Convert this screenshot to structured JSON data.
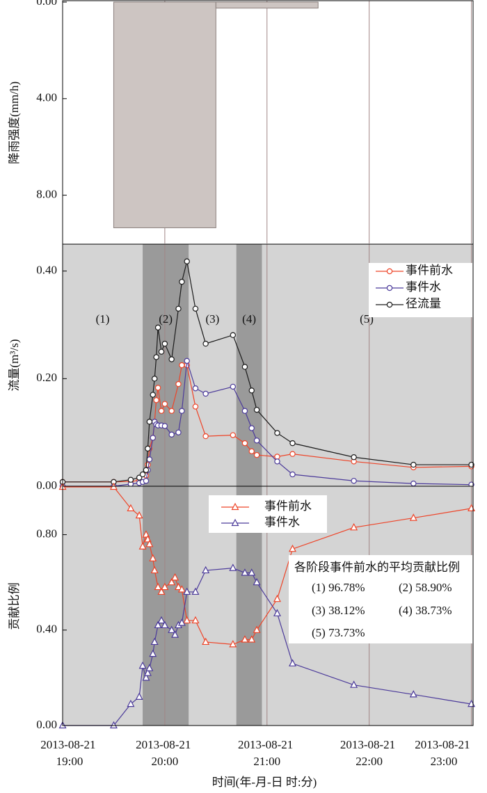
{
  "chart_data": [
    {
      "type": "histogram",
      "ylabel": "降雨强度(mm/h)",
      "reverse_y": true,
      "background": "#ffffff",
      "bins": [
        "2013-08-21 19:30",
        "2013-08-21 20:30",
        "2013-08-21 21:30"
      ],
      "values": [
        9.35,
        0.25
      ],
      "color": "#cdc5c2",
      "edge_color": "#8a7f7c",
      "xlim": [
        "2013-08-21 19:00",
        "2013-08-21 23:01"
      ],
      "xticks": [
        "2013-08-21 19:00",
        "2013-08-21 20:00",
        "2013-08-21 21:00",
        "2013-08-21 22:00",
        "2013-08-21 23:00"
      ],
      "ylim": [
        0,
        10
      ],
      "yticks": [
        {
          "value": 0,
          "label": "0.00"
        },
        {
          "value": 4,
          "label": "4.00"
        },
        {
          "value": 8,
          "label": "8.00"
        }
      ],
      "grid": true,
      "grid_color": "#a08585"
    },
    {
      "type": "line",
      "ylabel": "流量(m³/s)",
      "background": "#d4d4d4",
      "shade_color": "#9a9a9a",
      "phases": [
        {
          "label": "(1)",
          "start": "2013-08-21 19:00",
          "end": "2013-08-21 19:47",
          "shaded": false
        },
        {
          "label": "(2)",
          "start": "2013-08-21 19:47",
          "end": "2013-08-21 20:14",
          "shaded": true
        },
        {
          "label": "(3)",
          "start": "2013-08-21 20:14",
          "end": "2013-08-21 20:42",
          "shaded": false
        },
        {
          "label": "(4)",
          "start": "2013-08-21 20:42",
          "end": "2013-08-21 20:57",
          "shaded": true
        },
        {
          "label": "(5)",
          "start": "2013-08-21 20:57",
          "end": "2013-08-21 23:00",
          "shaded": false
        }
      ],
      "x": [
        "2013-08-21 19:00",
        "2013-08-21 19:30",
        "2013-08-21 19:40",
        "2013-08-21 19:45",
        "2013-08-21 19:47",
        "2013-08-21 19:49",
        "2013-08-21 19:50",
        "2013-08-21 19:51",
        "2013-08-21 19:53",
        "2013-08-21 19:54",
        "2013-08-21 19:55",
        "2013-08-21 19:56",
        "2013-08-21 19:58",
        "2013-08-21 20:00",
        "2013-08-21 20:04",
        "2013-08-21 20:08",
        "2013-08-21 20:10",
        "2013-08-21 20:13",
        "2013-08-21 20:18",
        "2013-08-21 20:24",
        "2013-08-21 20:40",
        "2013-08-21 20:47",
        "2013-08-21 20:51",
        "2013-08-21 20:54",
        "2013-08-21 21:06",
        "2013-08-21 21:15",
        "2013-08-21 21:51",
        "2013-08-21 22:26",
        "2013-08-21 23:00"
      ],
      "series": [
        {
          "name": "事件前水",
          "color": "#ee4428",
          "marker": "circle",
          "values": [
            0.008,
            0.008,
            0.009,
            0.011,
            0.014,
            0.02,
            0.04,
            0.07,
            0.09,
            0.12,
            0.16,
            0.183,
            0.14,
            0.153,
            0.14,
            0.19,
            0.225,
            0.225,
            0.148,
            0.093,
            0.095,
            0.08,
            0.065,
            0.058,
            0.055,
            0.06,
            0.046,
            0.035,
            0.037
          ]
        },
        {
          "name": "事件水",
          "color": "#4b3a9a",
          "marker": "circle",
          "values": [
            0,
            0,
            0.004,
            0.006,
            0.008,
            0.01,
            0.03,
            0.05,
            0.09,
            0.12,
            0.115,
            0.113,
            0.113,
            0.112,
            0.096,
            0.1,
            0.14,
            0.233,
            0.182,
            0.172,
            0.185,
            0.14,
            0.108,
            0.085,
            0.046,
            0.022,
            0.01,
            0.005,
            0.003
          ]
        },
        {
          "name": "径流量",
          "color": "#1a1a1a",
          "marker": "circle",
          "values": [
            0.008,
            0.008,
            0.012,
            0.016,
            0.022,
            0.03,
            0.07,
            0.12,
            0.17,
            0.2,
            0.24,
            0.295,
            0.25,
            0.265,
            0.236,
            0.33,
            0.38,
            0.418,
            0.33,
            0.265,
            0.281,
            0.222,
            0.178,
            0.142,
            0.099,
            0.08,
            0.054,
            0.04,
            0.04
          ]
        }
      ],
      "xlim": [
        "2013-08-21 19:00",
        "2013-08-21 23:01"
      ],
      "xticks": [
        "2013-08-21 19:00",
        "2013-08-21 20:00",
        "2013-08-21 21:00",
        "2013-08-21 22:00",
        "2013-08-21 23:00"
      ],
      "ylim": [
        0,
        0.45
      ],
      "yticks": [
        {
          "value": 0,
          "label": "0.00"
        },
        {
          "value": 0.2,
          "label": "0.20"
        },
        {
          "value": 0.4,
          "label": "0.40"
        }
      ],
      "grid": true,
      "grid_color": "#a08585",
      "legend": "upper right"
    },
    {
      "type": "line",
      "ylabel": "贡献比例",
      "xlabel": "时间(年-月-日 时:分)",
      "background": "#d4d4d4",
      "shade_color": "#9a9a9a",
      "phases": [
        {
          "start": "2013-08-21 19:47",
          "end": "2013-08-21 20:14",
          "shaded": true
        },
        {
          "start": "2013-08-21 20:42",
          "end": "2013-08-21 20:57",
          "shaded": true
        }
      ],
      "x": [
        "2013-08-21 19:00",
        "2013-08-21 19:30",
        "2013-08-21 19:40",
        "2013-08-21 19:45",
        "2013-08-21 19:47",
        "2013-08-21 19:49",
        "2013-08-21 19:50",
        "2013-08-21 19:51",
        "2013-08-21 19:53",
        "2013-08-21 19:54",
        "2013-08-21 19:56",
        "2013-08-21 19:58",
        "2013-08-21 20:00",
        "2013-08-21 20:04",
        "2013-08-21 20:06",
        "2013-08-21 20:08",
        "2013-08-21 20:10",
        "2013-08-21 20:13",
        "2013-08-21 20:18",
        "2013-08-21 20:24",
        "2013-08-21 20:40",
        "2013-08-21 20:47",
        "2013-08-21 20:51",
        "2013-08-21 20:54",
        "2013-08-21 21:06",
        "2013-08-21 21:15",
        "2013-08-21 21:51",
        "2013-08-21 22:26",
        "2013-08-21 23:00"
      ],
      "series": [
        {
          "name": "事件前水",
          "color": "#ee4428",
          "marker": "triangle",
          "values": [
            1.0,
            1.0,
            0.91,
            0.88,
            0.75,
            0.8,
            0.78,
            0.76,
            0.7,
            0.65,
            0.58,
            0.56,
            0.58,
            0.6,
            0.62,
            0.58,
            0.57,
            0.44,
            0.44,
            0.35,
            0.34,
            0.36,
            0.36,
            0.4,
            0.53,
            0.74,
            0.83,
            0.87,
            0.91
          ]
        },
        {
          "name": "事件水",
          "color": "#4b3a9a",
          "marker": "triangle",
          "values": [
            0,
            0,
            0.09,
            0.12,
            0.25,
            0.2,
            0.22,
            0.24,
            0.3,
            0.35,
            0.42,
            0.44,
            0.42,
            0.4,
            0.38,
            0.42,
            0.43,
            0.56,
            0.56,
            0.65,
            0.66,
            0.64,
            0.64,
            0.6,
            0.47,
            0.26,
            0.17,
            0.13,
            0.09
          ]
        }
      ],
      "xlim": [
        "2013-08-21 19:00",
        "2013-08-21 23:01"
      ],
      "xticks": [
        "2013-08-21 19:00",
        "2013-08-21 20:00",
        "2013-08-21 21:00",
        "2013-08-21 22:00",
        "2013-08-21 23:00"
      ],
      "ylim": [
        0,
        1.0
      ],
      "yticks": [
        {
          "value": 0,
          "label": "0.00"
        },
        {
          "value": 0.4,
          "label": "0.40"
        },
        {
          "value": 0.8,
          "label": "0.80"
        }
      ],
      "grid": true,
      "grid_color": "#a08585",
      "legend": "upper center",
      "annotation": {
        "title": "各阶段事件前水的平均贡献比例",
        "items": [
          "(1) 96.78%",
          "(2) 58.90%",
          "(3) 38.12%",
          "(4) 38.73%",
          "(5) 73.73%"
        ]
      }
    }
  ]
}
